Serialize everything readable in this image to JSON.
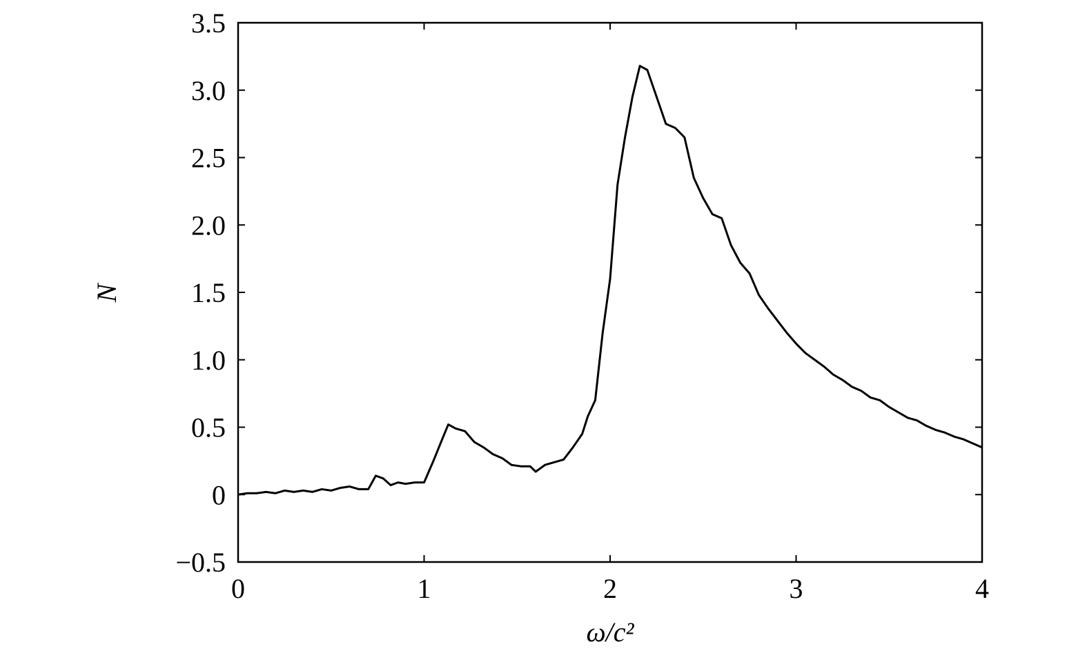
{
  "chart_data": {
    "type": "line",
    "xlabel": "ω/c²",
    "ylabel": "N",
    "x": [
      0,
      0.05,
      0.1,
      0.15,
      0.2,
      0.25,
      0.3,
      0.35,
      0.4,
      0.45,
      0.5,
      0.55,
      0.6,
      0.65,
      0.7,
      0.74,
      0.78,
      0.82,
      0.86,
      0.9,
      0.95,
      1.0,
      1.05,
      1.1,
      1.13,
      1.17,
      1.22,
      1.27,
      1.32,
      1.37,
      1.42,
      1.47,
      1.52,
      1.57,
      1.6,
      1.65,
      1.7,
      1.75,
      1.8,
      1.85,
      1.88,
      1.92,
      1.96,
      2.0,
      2.04,
      2.08,
      2.12,
      2.16,
      2.2,
      2.25,
      2.3,
      2.35,
      2.4,
      2.45,
      2.5,
      2.55,
      2.6,
      2.65,
      2.7,
      2.75,
      2.8,
      2.85,
      2.9,
      2.95,
      3.0,
      3.05,
      3.1,
      3.15,
      3.2,
      3.25,
      3.3,
      3.35,
      3.4,
      3.45,
      3.5,
      3.55,
      3.6,
      3.65,
      3.7,
      3.75,
      3.8,
      3.85,
      3.9,
      3.95,
      4.0
    ],
    "series": [
      {
        "color": "#000000",
        "values": [
          0.0,
          0.01,
          0.01,
          0.02,
          0.01,
          0.03,
          0.02,
          0.03,
          0.02,
          0.04,
          0.03,
          0.05,
          0.06,
          0.04,
          0.04,
          0.14,
          0.12,
          0.07,
          0.09,
          0.08,
          0.09,
          0.09,
          0.25,
          0.42,
          0.52,
          0.49,
          0.47,
          0.39,
          0.35,
          0.3,
          0.27,
          0.22,
          0.21,
          0.21,
          0.17,
          0.22,
          0.24,
          0.26,
          0.35,
          0.45,
          0.58,
          0.7,
          1.2,
          1.6,
          2.3,
          2.65,
          2.95,
          3.18,
          3.15,
          2.95,
          2.75,
          2.72,
          2.65,
          2.35,
          2.2,
          2.08,
          2.05,
          1.85,
          1.72,
          1.64,
          1.48,
          1.38,
          1.29,
          1.2,
          1.12,
          1.05,
          1.0,
          0.95,
          0.89,
          0.85,
          0.8,
          0.77,
          0.72,
          0.7,
          0.65,
          0.61,
          0.57,
          0.55,
          0.51,
          0.48,
          0.46,
          0.43,
          0.41,
          0.38,
          0.35
        ]
      }
    ],
    "xlim": [
      0,
      4
    ],
    "xticks": [
      0,
      1,
      2,
      3,
      4
    ],
    "ylim": [
      -0.5,
      3.5
    ],
    "yticks": [
      {
        "value": -0.5,
        "label": "−0.5"
      },
      0,
      0.5,
      {
        "value": 1,
        "label": "1.0"
      },
      1.5,
      {
        "value": 2,
        "label": "2.0"
      },
      2.5,
      {
        "value": 3,
        "label": "3.0"
      },
      3.5
    ]
  }
}
